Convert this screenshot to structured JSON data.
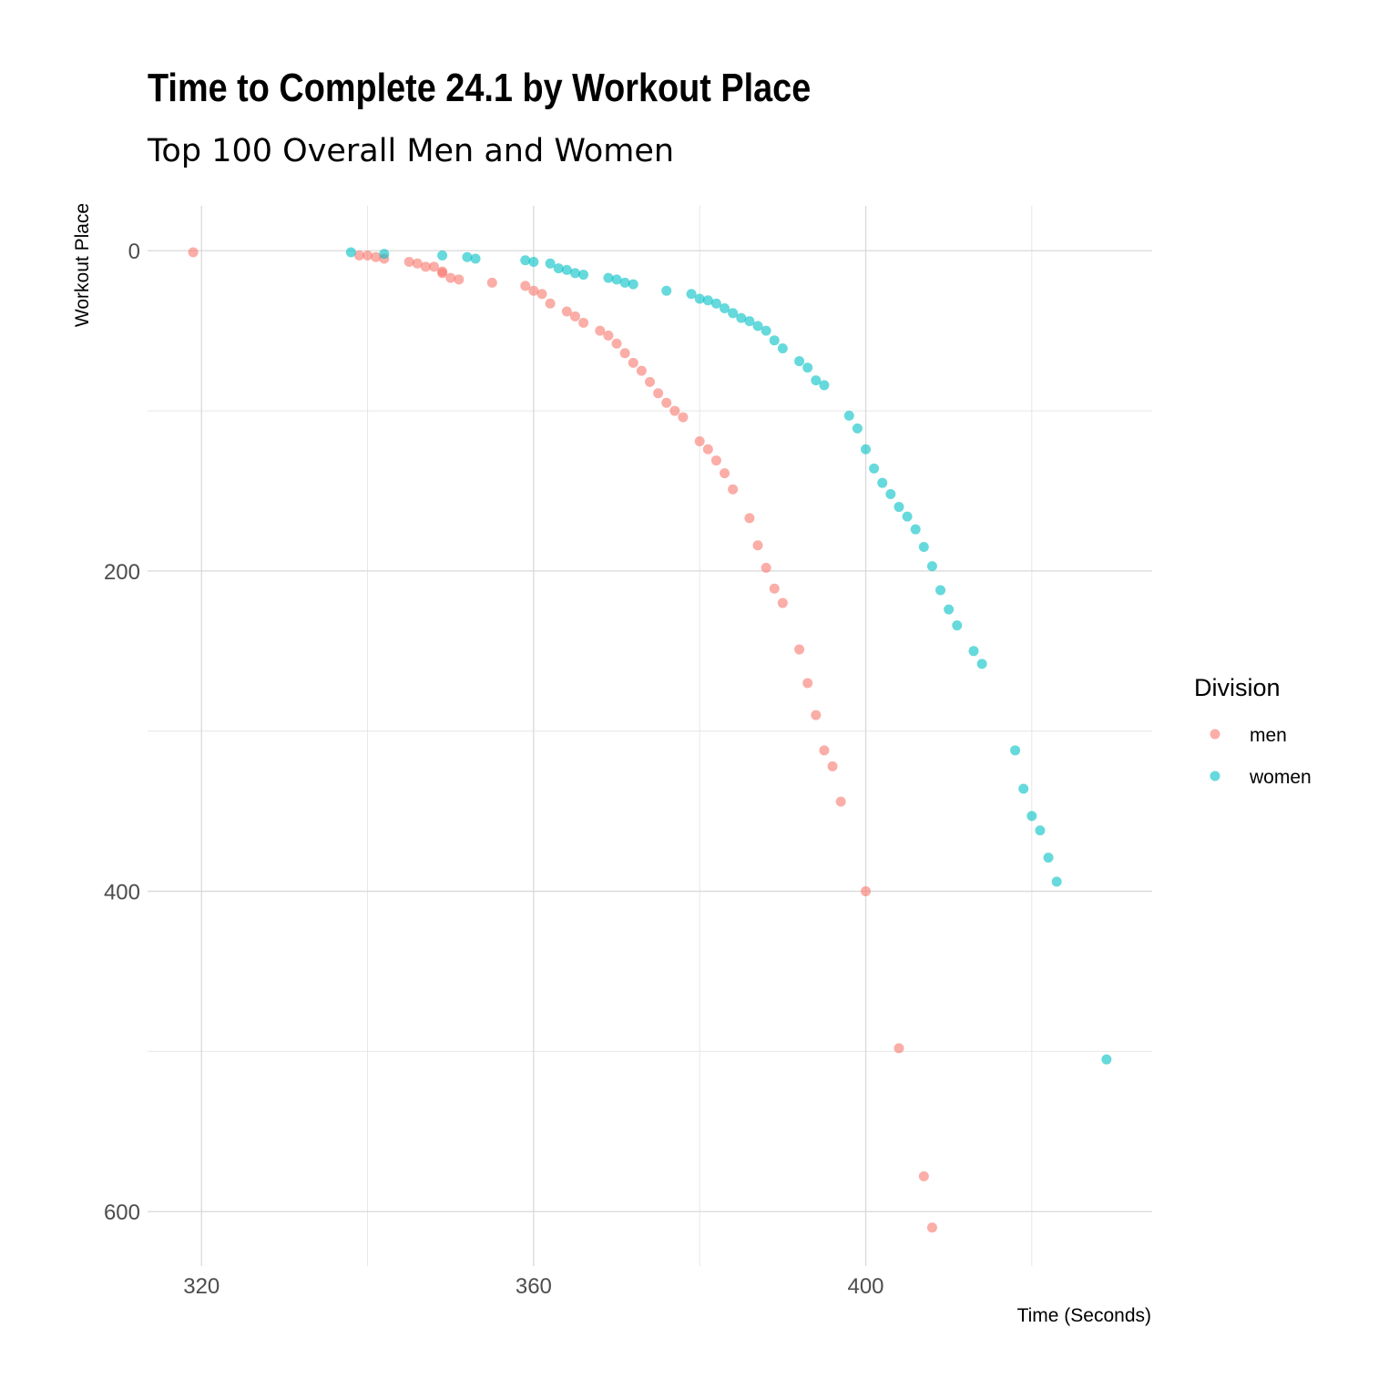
{
  "chart_data": {
    "type": "scatter",
    "title": "Time to Complete 24.1 by Workout Place",
    "subtitle": "Top 100 Overall Men and Women",
    "xlabel": "Time (Seconds)",
    "ylabel": "Workout Place",
    "xlim": [
      313.5,
      434.5
    ],
    "ylim": [
      -28,
      634
    ],
    "y_reversed": true,
    "x_ticks": [
      320,
      360,
      400
    ],
    "y_ticks": [
      0,
      200,
      400,
      600
    ],
    "grid": true,
    "legend": {
      "title": "Division",
      "position": "right"
    },
    "series": [
      {
        "name": "men",
        "color": "#F8766D",
        "points": [
          [
            319,
            1
          ],
          [
            339,
            3
          ],
          [
            340,
            3
          ],
          [
            341,
            4
          ],
          [
            342,
            5
          ],
          [
            345,
            7
          ],
          [
            346,
            8
          ],
          [
            347,
            10
          ],
          [
            348,
            10
          ],
          [
            349,
            13
          ],
          [
            349,
            14
          ],
          [
            350,
            17
          ],
          [
            351,
            18
          ],
          [
            355,
            20
          ],
          [
            359,
            22
          ],
          [
            360,
            25
          ],
          [
            361,
            27
          ],
          [
            362,
            33
          ],
          [
            364,
            38
          ],
          [
            365,
            41
          ],
          [
            366,
            45
          ],
          [
            368,
            50
          ],
          [
            369,
            53
          ],
          [
            370,
            58
          ],
          [
            371,
            64
          ],
          [
            372,
            70
          ],
          [
            373,
            75
          ],
          [
            374,
            82
          ],
          [
            375,
            89
          ],
          [
            376,
            95
          ],
          [
            377,
            100
          ],
          [
            378,
            104
          ],
          [
            380,
            119
          ],
          [
            381,
            124
          ],
          [
            382,
            131
          ],
          [
            383,
            139
          ],
          [
            384,
            149
          ],
          [
            386,
            167
          ],
          [
            387,
            184
          ],
          [
            388,
            198
          ],
          [
            389,
            211
          ],
          [
            390,
            220
          ],
          [
            392,
            249
          ],
          [
            393,
            270
          ],
          [
            394,
            290
          ],
          [
            395,
            312
          ],
          [
            396,
            322
          ],
          [
            397,
            344
          ],
          [
            400,
            400
          ],
          [
            404,
            498
          ],
          [
            407,
            578
          ],
          [
            408,
            610
          ]
        ]
      },
      {
        "name": "women",
        "color": "#00BFC4",
        "points": [
          [
            338,
            1
          ],
          [
            342,
            2
          ],
          [
            349,
            3
          ],
          [
            352,
            4
          ],
          [
            353,
            5
          ],
          [
            359,
            6
          ],
          [
            360,
            7
          ],
          [
            362,
            8
          ],
          [
            363,
            11
          ],
          [
            364,
            12
          ],
          [
            365,
            14
          ],
          [
            366,
            15
          ],
          [
            369,
            17
          ],
          [
            370,
            18
          ],
          [
            371,
            20
          ],
          [
            372,
            21
          ],
          [
            376,
            25
          ],
          [
            379,
            27
          ],
          [
            380,
            30
          ],
          [
            381,
            31
          ],
          [
            382,
            33
          ],
          [
            383,
            36
          ],
          [
            384,
            39
          ],
          [
            385,
            42
          ],
          [
            386,
            44
          ],
          [
            387,
            47
          ],
          [
            388,
            50
          ],
          [
            389,
            56
          ],
          [
            390,
            61
          ],
          [
            392,
            69
          ],
          [
            393,
            73
          ],
          [
            394,
            81
          ],
          [
            395,
            84
          ],
          [
            398,
            103
          ],
          [
            399,
            111
          ],
          [
            400,
            124
          ],
          [
            401,
            136
          ],
          [
            402,
            145
          ],
          [
            403,
            152
          ],
          [
            404,
            160
          ],
          [
            405,
            166
          ],
          [
            406,
            174
          ],
          [
            407,
            185
          ],
          [
            408,
            197
          ],
          [
            409,
            212
          ],
          [
            410,
            224
          ],
          [
            411,
            234
          ],
          [
            413,
            250
          ],
          [
            414,
            258
          ],
          [
            418,
            312
          ],
          [
            419,
            336
          ],
          [
            420,
            353
          ],
          [
            421,
            362
          ],
          [
            422,
            379
          ],
          [
            423,
            394
          ],
          [
            429,
            505
          ]
        ]
      }
    ]
  }
}
